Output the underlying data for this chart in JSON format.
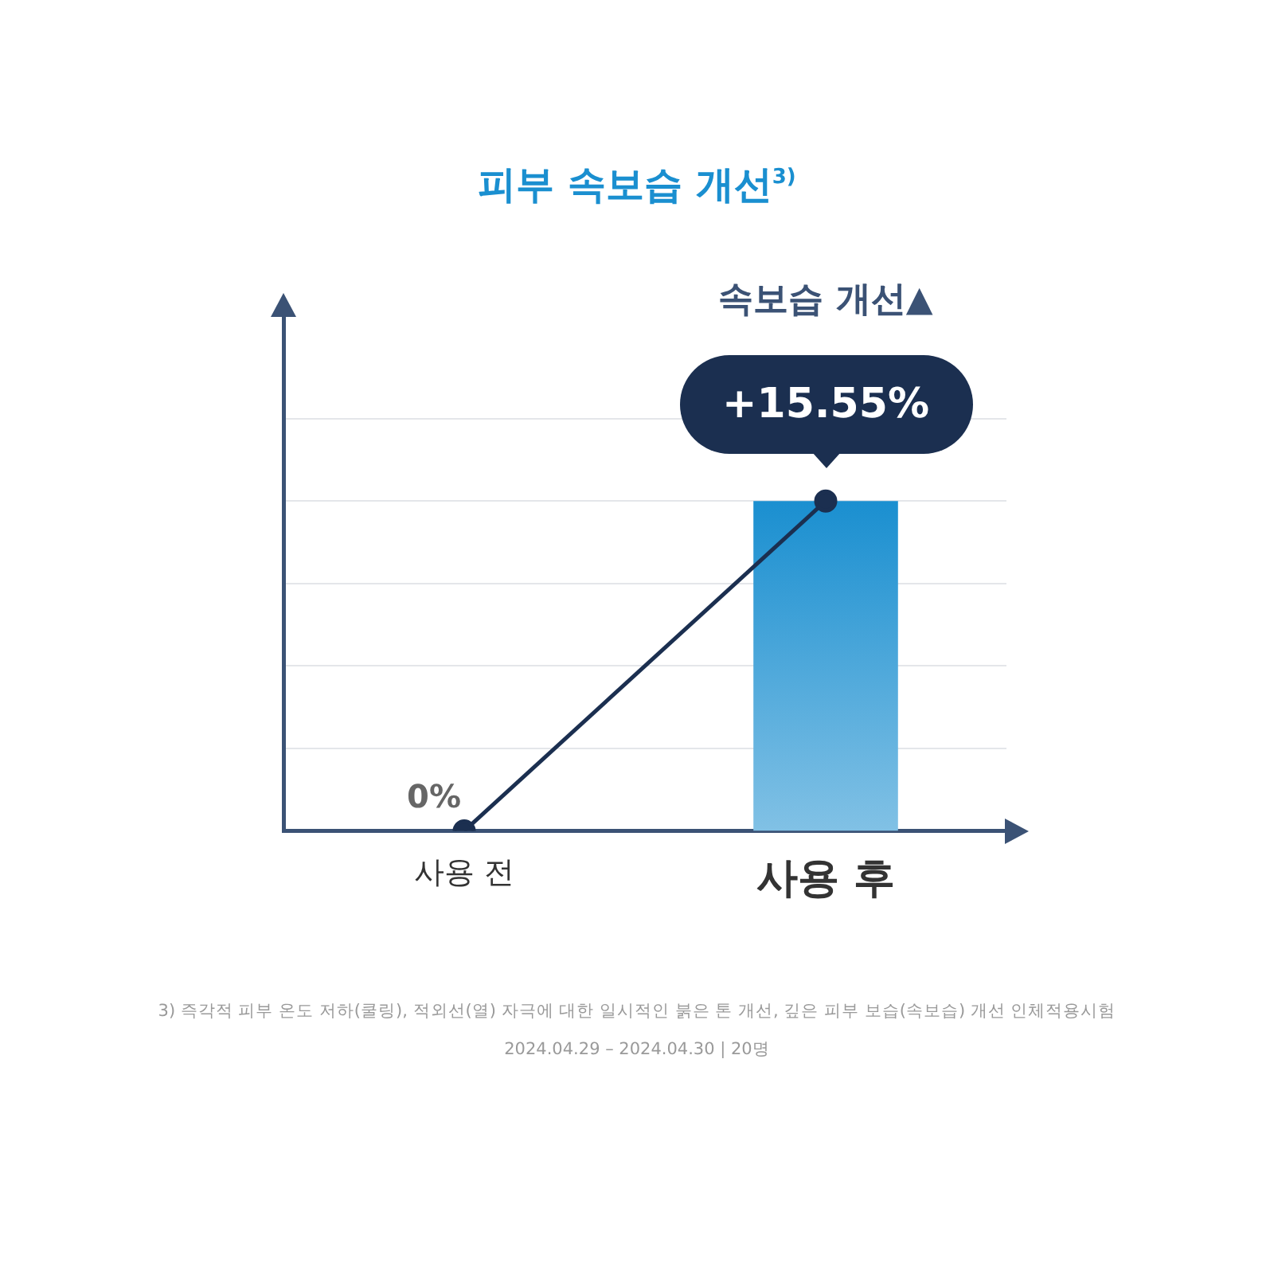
{
  "chart_data": {
    "type": "bar",
    "title": "피부 속보습 개선$^{3)}$",
    "categories": [
      "사용 전",
      "사용 후"
    ],
    "series": [
      {
        "color": "#1a8fd0",
        "values": [
          null,
          15.55
        ]
      },
      {
        "type": "line",
        "color": "#1b2f50",
        "values": [
          0,
          15.55
        ],
        "value_labels": [
          "0%",
          "+15.55%"
        ]
      }
    ],
    "ylim": [
      0,
      24.3
    ],
    "yticks": [
      {
        "value": 3.89,
        "label": null
      },
      {
        "value": 7.78,
        "label": null
      },
      {
        "value": 11.66,
        "label": null
      },
      {
        "value": 15.55,
        "label": null
      },
      {
        "value": 19.44,
        "label": null
      }
    ],
    "grid": "y",
    "marker": "circle",
    "tick_labels": "x",
    "annotations": [
      "속보습 개선▲",
      "3) 즉각적 피부 온도 저하(쿨링), 적외선(열) 자극에 대한 일시적인 붉은 톤 개선, 깊은 피부 보습(속보습) 개선 인체적용시험",
      "2024.04.29 – 2024.04.30 | 20명"
    ]
  }
}
